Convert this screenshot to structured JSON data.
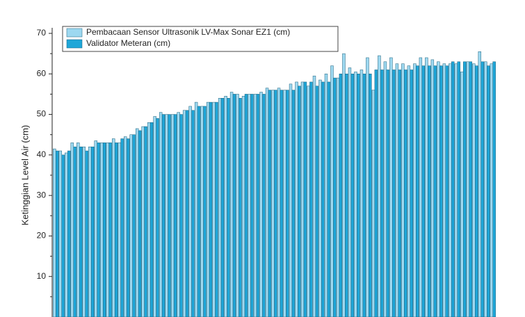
{
  "chart_data": {
    "type": "bar",
    "y_label": "Ketinggian Level Air (cm)",
    "categories": [
      null,
      null,
      null,
      null,
      null,
      null,
      null,
      null,
      null,
      null,
      null,
      null,
      null,
      null,
      null,
      null,
      null,
      null,
      null,
      null,
      null,
      null,
      null,
      null,
      null,
      null,
      null,
      null,
      null,
      null,
      null,
      null,
      null,
      null,
      null,
      null,
      null,
      null,
      null,
      null,
      null,
      null,
      null,
      null,
      null,
      null,
      null,
      null,
      null,
      null,
      null,
      null,
      null,
      null,
      null,
      null,
      null,
      null,
      null,
      null,
      null,
      null,
      null,
      null,
      null,
      null,
      null,
      null,
      null,
      null,
      null,
      null,
      null,
      null,
      null
    ],
    "series": [
      {
        "name": "Pembacaan Sensor Ultrasonik LV-Max Sonar EZ1 (cm)",
        "color": "#9dd8f0",
        "values": [
          41.5,
          41,
          40.5,
          43,
          43,
          42,
          42,
          43.5,
          43,
          43,
          44,
          43,
          44.5,
          45,
          46.5,
          47,
          48,
          49.5,
          50.5,
          50,
          50,
          50.5,
          51,
          52,
          53,
          52,
          53,
          53,
          54,
          54.5,
          55.5,
          55,
          54.5,
          55,
          55,
          55.5,
          56.5,
          56,
          56.5,
          56,
          57.5,
          58,
          58,
          57,
          59.5,
          58.5,
          60,
          62,
          59,
          65,
          61.5,
          60.5,
          61,
          64,
          56,
          64.5,
          63,
          64,
          62.5,
          62.5,
          62,
          62.5,
          64,
          64,
          63.5,
          63,
          62.5,
          62.5,
          62.5,
          60.5,
          63,
          62.5,
          65.5,
          63,
          62.5
        ]
      },
      {
        "name": "Validator Meteran (cm)",
        "color": "#1ea6d8",
        "values": [
          41,
          40,
          41,
          42,
          42,
          41,
          42,
          43,
          43,
          43,
          43,
          44,
          44,
          45,
          46,
          47,
          48,
          49,
          50,
          50,
          50,
          50,
          51,
          51,
          52,
          52,
          53,
          53,
          54,
          54,
          55,
          54,
          55,
          55,
          55,
          55,
          56,
          56,
          56,
          56,
          56,
          57,
          58,
          58,
          57,
          58,
          58,
          59,
          60,
          60,
          60,
          60,
          60,
          60,
          61,
          61,
          61,
          61,
          61,
          61,
          61,
          62,
          62,
          62,
          62,
          62,
          62,
          63,
          63,
          63,
          63,
          62,
          63,
          62,
          63
        ]
      }
    ],
    "ylim": [
      0,
      70
    ],
    "yticks": [
      10,
      20,
      30,
      40,
      50,
      60,
      70
    ]
  }
}
